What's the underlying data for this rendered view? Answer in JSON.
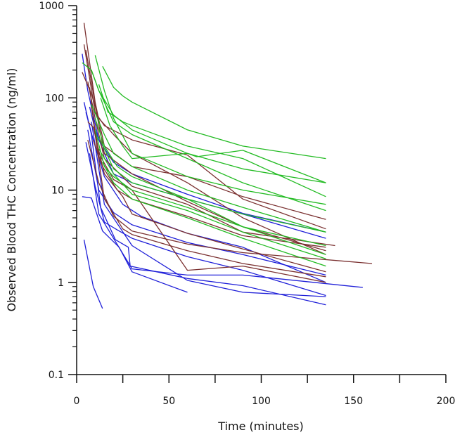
{
  "chart_data": {
    "type": "line",
    "title": "",
    "xlabel": "Time (minutes)",
    "ylabel": "Observed Blood THC Concentration (ng/ml)",
    "xscale": "linear",
    "yscale": "log",
    "xlim": [
      0,
      200
    ],
    "ylim": [
      0.1,
      1000
    ],
    "x_ticks": [
      0,
      25,
      50,
      75,
      100,
      125,
      150,
      175,
      200
    ],
    "x_tick_labels": [
      "0",
      "50",
      "100",
      "150",
      "200"
    ],
    "y_tick_labels": [
      "0.1",
      "1",
      "10",
      "100",
      "1000"
    ],
    "grid": false,
    "legend": "none",
    "colors": {
      "blue": "#1f1fd8",
      "brown": "#7a3030",
      "green": "#22bb22"
    },
    "series": [
      {
        "color": "blue",
        "x": [
          4,
          9,
          14
        ],
        "y": [
          2.9,
          0.9,
          0.52
        ]
      },
      {
        "color": "blue",
        "x": [
          3,
          8,
          14,
          23,
          30,
          60
        ],
        "y": [
          8.5,
          8.2,
          3.6,
          2.4,
          1.3,
          0.78
        ]
      },
      {
        "color": "blue",
        "x": [
          4,
          8,
          13,
          21,
          28,
          29,
          60,
          90,
          135
        ],
        "y": [
          90,
          40,
          6.5,
          2.9,
          2.4,
          1.5,
          1.1,
          0.92,
          0.57
        ]
      },
      {
        "color": "blue",
        "x": [
          5,
          10,
          15,
          22,
          30,
          60,
          90,
          135
        ],
        "y": [
          33,
          11,
          4.5,
          3.7,
          3.0,
          1.9,
          1.35,
          0.72
        ]
      },
      {
        "color": "blue",
        "x": [
          6,
          12,
          20,
          30,
          60,
          90,
          135
        ],
        "y": [
          45,
          10,
          5.7,
          4.2,
          2.7,
          2.0,
          1.2
        ]
      },
      {
        "color": "blue",
        "x": [
          7,
          12,
          30,
          60,
          90,
          155
        ],
        "y": [
          25,
          5.5,
          1.4,
          1.2,
          1.2,
          0.88
        ]
      },
      {
        "color": "blue",
        "x": [
          8,
          15,
          30,
          60,
          90,
          135
        ],
        "y": [
          55,
          7.0,
          2.5,
          1.05,
          0.78,
          0.7
        ]
      },
      {
        "color": "blue",
        "x": [
          3,
          6,
          12,
          20,
          30,
          60,
          90,
          135
        ],
        "y": [
          300,
          120,
          35,
          20,
          15,
          9,
          5.6,
          3.5
        ]
      },
      {
        "color": "blue",
        "x": [
          7,
          10,
          15,
          20,
          30,
          60,
          90,
          135
        ],
        "y": [
          80,
          45,
          25,
          15,
          12,
          8,
          5.5,
          3.0
        ]
      },
      {
        "color": "blue",
        "x": [
          5,
          9,
          15,
          25,
          35,
          60,
          90,
          135
        ],
        "y": [
          70,
          35,
          14,
          7,
          5.2,
          3.4,
          2.4,
          1.0
        ]
      },
      {
        "color": "brown",
        "x": [
          4,
          10,
          15,
          30,
          60,
          90,
          135
        ],
        "y": [
          650,
          90,
          30,
          18,
          14,
          8.5,
          4.8
        ]
      },
      {
        "color": "brown",
        "x": [
          4,
          10,
          15,
          30,
          60,
          90,
          135
        ],
        "y": [
          380,
          70,
          50,
          35,
          24,
          8.0,
          3.8
        ]
      },
      {
        "color": "brown",
        "x": [
          5,
          11,
          15,
          30,
          60,
          90,
          135
        ],
        "y": [
          330,
          65,
          25,
          15,
          7.5,
          4.0,
          2.2
        ]
      },
      {
        "color": "brown",
        "x": [
          3,
          8,
          12,
          20,
          30,
          60,
          90,
          135
        ],
        "y": [
          190,
          110,
          60,
          40,
          25,
          12,
          5.0,
          2.0
        ]
      },
      {
        "color": "brown",
        "x": [
          6,
          10,
          15,
          30,
          60,
          90,
          140
        ],
        "y": [
          150,
          60,
          22,
          11,
          7.0,
          3.5,
          2.5
        ]
      },
      {
        "color": "brown",
        "x": [
          6,
          9,
          15,
          25,
          30,
          60,
          90,
          135
        ],
        "y": [
          55,
          48,
          15,
          8.5,
          5.5,
          3.4,
          2.3,
          1.3
        ]
      },
      {
        "color": "brown",
        "x": [
          6,
          12,
          20,
          30,
          60,
          90,
          160
        ],
        "y": [
          35,
          12,
          5.2,
          3.6,
          2.6,
          2.1,
          1.6
        ]
      },
      {
        "color": "brown",
        "x": [
          7,
          10,
          15,
          25,
          30,
          60,
          90,
          135
        ],
        "y": [
          130,
          40,
          8.0,
          3.8,
          3.3,
          2.2,
          1.6,
          1.15
        ]
      },
      {
        "color": "brown",
        "x": [
          8,
          12,
          20,
          30,
          60,
          90,
          135
        ],
        "y": [
          80,
          25,
          13,
          10,
          1.35,
          1.5,
          1.0
        ]
      },
      {
        "color": "brown",
        "x": [
          9,
          14,
          22,
          30,
          60,
          90,
          135
        ],
        "y": [
          35,
          18,
          10,
          8,
          5.2,
          3.2,
          2.4
        ]
      },
      {
        "color": "green",
        "x": [
          3,
          8,
          12,
          20,
          30,
          60,
          90,
          135
        ],
        "y": [
          240,
          200,
          120,
          65,
          45,
          25,
          17,
          12
        ]
      },
      {
        "color": "green",
        "x": [
          8,
          12,
          20,
          30,
          60,
          90,
          135
        ],
        "y": [
          200,
          120,
          55,
          40,
          22,
          12,
          6
        ]
      },
      {
        "color": "green",
        "x": [
          10,
          15,
          20,
          30,
          60,
          90,
          135
        ],
        "y": [
          290,
          120,
          60,
          25,
          14,
          10,
          7
        ]
      },
      {
        "color": "green",
        "x": [
          14,
          20,
          25,
          30,
          60,
          90,
          135
        ],
        "y": [
          220,
          130,
          105,
          90,
          45,
          30,
          22
        ]
      },
      {
        "color": "green",
        "x": [
          12,
          17,
          25,
          30,
          60,
          90,
          135
        ],
        "y": [
          140,
          70,
          55,
          50,
          30,
          22,
          8.5
        ]
      },
      {
        "color": "green",
        "x": [
          13,
          18,
          25,
          30,
          60,
          65,
          90,
          135
        ],
        "y": [
          100,
          50,
          30,
          22,
          25,
          23,
          27,
          12
        ]
      },
      {
        "color": "green",
        "x": [
          8,
          15,
          20,
          30,
          60,
          90,
          135
        ],
        "y": [
          85,
          40,
          25,
          18,
          10,
          6.5,
          3.5
        ]
      },
      {
        "color": "green",
        "x": [
          12,
          20,
          30,
          60,
          90,
          135
        ],
        "y": [
          38,
          17,
          12,
          8,
          5.5,
          3.5
        ]
      },
      {
        "color": "green",
        "x": [
          10,
          15,
          22,
          30,
          60,
          90,
          135
        ],
        "y": [
          60,
          30,
          18,
          14,
          8.0,
          4.0,
          2.5
        ]
      },
      {
        "color": "green",
        "x": [
          10,
          15,
          20,
          30,
          60,
          90,
          135
        ],
        "y": [
          45,
          18,
          14,
          10,
          6.5,
          4.0,
          2.0
        ]
      },
      {
        "color": "green",
        "x": [
          12,
          20,
          30,
          60,
          90,
          135
        ],
        "y": [
          28,
          15,
          9,
          6.0,
          3.5,
          1.8
        ]
      },
      {
        "color": "green",
        "x": [
          14,
          20,
          30,
          60,
          90,
          135
        ],
        "y": [
          20,
          12,
          8.0,
          5.0,
          3.0,
          1.5
        ]
      }
    ]
  }
}
